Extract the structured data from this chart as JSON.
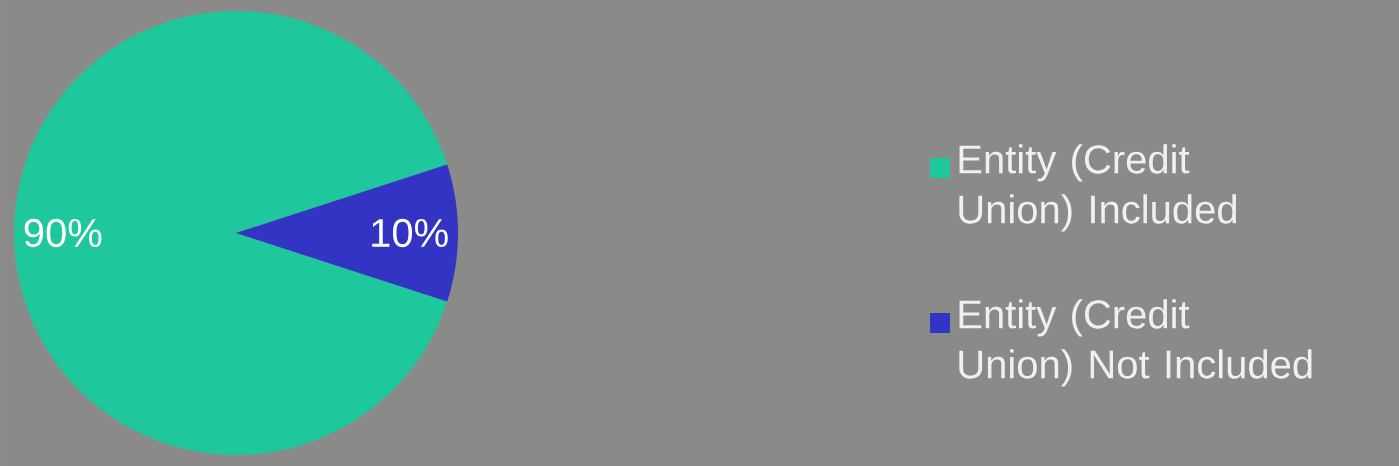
{
  "chart_data": {
    "type": "pie",
    "categories": [
      "Entity (Credit Union) Included",
      "Entity (Credit Union) Not Included"
    ],
    "values": [
      90,
      10
    ],
    "colors": [
      "#1ec89c",
      "#3333c4"
    ],
    "value_labels": [
      "90%",
      "10%"
    ],
    "legend": "right"
  }
}
